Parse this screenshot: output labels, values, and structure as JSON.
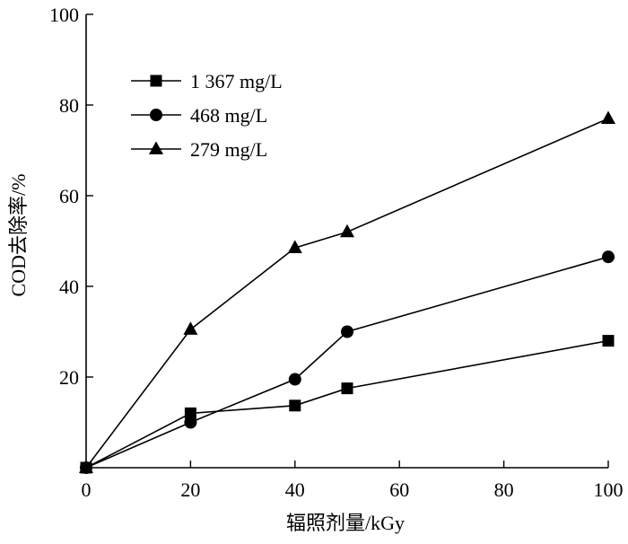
{
  "chart_data": {
    "type": "line",
    "title": "",
    "xlabel": "辐照剂量/kGy",
    "ylabel": "COD去除率/%",
    "xlim": [
      0,
      100
    ],
    "ylim": [
      0,
      100
    ],
    "xticks": [
      0,
      20,
      40,
      60,
      80,
      100
    ],
    "yticks": [
      20,
      40,
      60,
      80,
      100
    ],
    "grid": false,
    "legend_position": "top-left",
    "series": [
      {
        "name": "1 367 mg/L",
        "marker": "square",
        "color": "#000000",
        "x": [
          0,
          20,
          40,
          50,
          100
        ],
        "y": [
          0,
          12.0,
          13.7,
          17.5,
          28.0
        ]
      },
      {
        "name": "468 mg/L",
        "marker": "circle",
        "color": "#000000",
        "x": [
          0,
          20,
          40,
          50,
          100
        ],
        "y": [
          0,
          10.0,
          19.5,
          30.0,
          46.5
        ]
      },
      {
        "name": "279 mg/L",
        "marker": "triangle",
        "color": "#000000",
        "x": [
          0,
          20,
          40,
          50,
          100
        ],
        "y": [
          0,
          30.5,
          48.5,
          52.0,
          77.0
        ]
      }
    ]
  }
}
